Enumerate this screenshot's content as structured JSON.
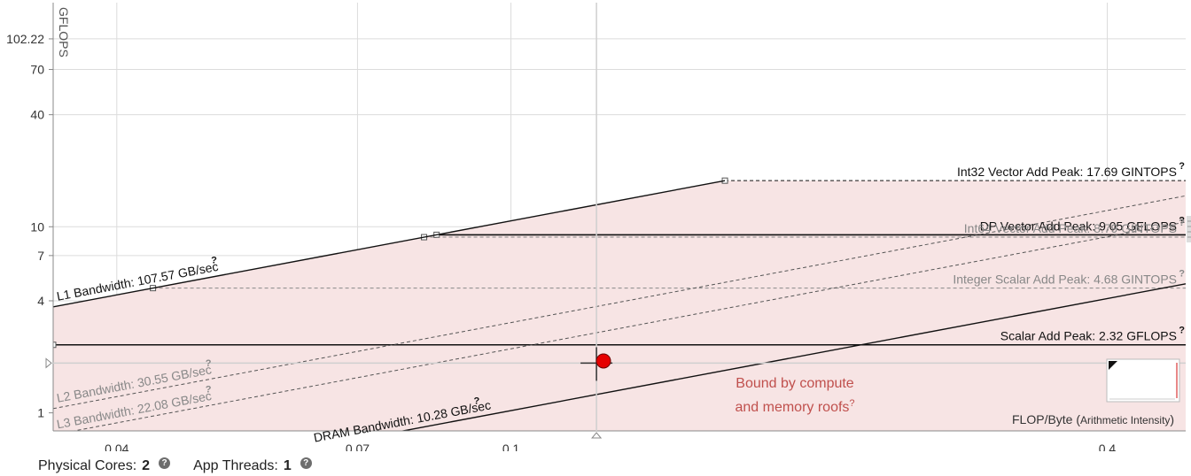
{
  "chart_data": {
    "type": "line",
    "title": "",
    "xlabel": "FLOP/Byte",
    "xlabel_suffix": "Arithmetic Intensity",
    "ylabel": "GFLOPS",
    "x_scale": "log",
    "y_scale": "log",
    "xlim": [
      0.0345,
      0.48
    ],
    "ylim": [
      0.8,
      160
    ],
    "x_ticks": [
      {
        "value": 0.04,
        "label": "0.04"
      },
      {
        "value": 0.07,
        "label": "0.07"
      },
      {
        "value": 0.1,
        "label": "0.1"
      },
      {
        "value": 0.4,
        "label": "0.4"
      }
    ],
    "y_ticks": [
      {
        "value": 1,
        "label": "1"
      },
      {
        "value": 4,
        "label": "4"
      },
      {
        "value": 7,
        "label": "7"
      },
      {
        "value": 10,
        "label": "10"
      },
      {
        "value": 40,
        "label": "40"
      },
      {
        "value": 70,
        "label": "70"
      },
      {
        "value": 102.22,
        "label": "102.22"
      }
    ],
    "grid": true,
    "bandwidth_roofs": [
      {
        "name": "L1 Bandwidth: 107.57 GB/sec",
        "gbps": 107.57,
        "style": "solid"
      },
      {
        "name": "L2 Bandwidth: 30.55 GB/sec",
        "gbps": 30.55,
        "style": "dashed"
      },
      {
        "name": "L3 Bandwidth: 22.08 GB/sec",
        "gbps": 22.08,
        "style": "dashed"
      },
      {
        "name": "DRAM Bandwidth: 10.28 GB/sec",
        "gbps": 10.28,
        "style": "solid"
      }
    ],
    "compute_roofs": [
      {
        "name": "Int32 Vector Add Peak: 17.69 GINTOPS",
        "value": 17.69,
        "style": "dashed",
        "color": "#111111"
      },
      {
        "name": "DP Vector Add Peak: 9.05 GFLOPS",
        "value": 9.05,
        "style": "solid",
        "color": "#111111"
      },
      {
        "name": "Int64 Vector Add Peak: 8.79 GINTOPS",
        "value": 8.79,
        "style": "dashed",
        "color": "#888888"
      },
      {
        "name": "Integer Scalar Add Peak: 4.68 GINTOPS",
        "value": 4.68,
        "style": "dashed",
        "color": "#888888"
      },
      {
        "name": "Scalar Add Peak: 2.32 GFLOPS",
        "value": 2.32,
        "style": "solid",
        "color": "#111111"
      }
    ],
    "points": [
      {
        "x": 0.124,
        "y": 1.9,
        "color": "#e60000"
      }
    ],
    "crosshair": {
      "x": 0.122,
      "y": 1.85
    },
    "annotation": {
      "line1": "Bound by compute",
      "line2": "and memory roofs",
      "color": "#c0504d"
    },
    "colors": {
      "region_fill": "#f7e4e4",
      "grid": "#dcdcdc",
      "axis": "#888888"
    }
  },
  "footer": {
    "cores_label": "Physical Cores:",
    "cores_value": "2",
    "threads_label": "App Threads:",
    "threads_value": "1",
    "help_glyph": "?"
  },
  "qmark": "?"
}
